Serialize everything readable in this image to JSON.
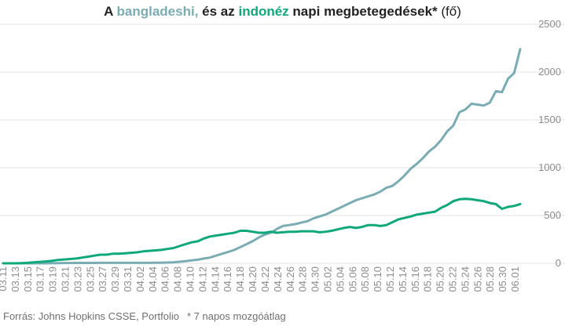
{
  "title": {
    "part1": "A ",
    "part2": "bangladeshi,",
    "part3": " és az ",
    "part4": "indonéz",
    "part5": " napi megbetegedések* ",
    "part6": "(fő)"
  },
  "footer": {
    "source": "Forrás: Johns Hopkins CSSE, Portfolio",
    "note": "* 7 napos mozgóátlag"
  },
  "colors": {
    "bangladesh": "#7aacb3",
    "indonesia": "#0fa878",
    "grid": "#e3e3e3",
    "tick": "#8c8c8c"
  },
  "chart_data": {
    "type": "line",
    "ylim": [
      0,
      2500
    ],
    "yticks": [
      0,
      500,
      1000,
      1500,
      2000,
      2500
    ],
    "xticks": [
      "03.11",
      "03.13",
      "03.15",
      "03.17",
      "03.19",
      "03.21",
      "03.23",
      "03.25",
      "03.27",
      "03.29",
      "03.31",
      "04.02",
      "04.04",
      "04.06",
      "04.08",
      "04.10",
      "04.12",
      "04.14",
      "04.16",
      "04.18",
      "04.20",
      "04.22",
      "04.24",
      "04.26",
      "04.28",
      "04.30",
      "05.02",
      "05.04",
      "05.06",
      "05.08",
      "05.10",
      "05.12",
      "05.14",
      "05.16",
      "05.18",
      "05.20",
      "05.22",
      "05.24",
      "05.26",
      "05.28",
      "05.30",
      "06.01"
    ],
    "series": [
      {
        "key": "bangladesh",
        "values": [
          0,
          0,
          0,
          0,
          0,
          0,
          0,
          0,
          1,
          2,
          3,
          3,
          4,
          4,
          4,
          4,
          5,
          5,
          5,
          5,
          5,
          5,
          5,
          5,
          5,
          6,
          6,
          8,
          11,
          16,
          22,
          30,
          38,
          50,
          60,
          80,
          100,
          120,
          140,
          170,
          200,
          230,
          270,
          300,
          320,
          360,
          390,
          400,
          410,
          425,
          440,
          470,
          490,
          510,
          540,
          570,
          600,
          630,
          660,
          680,
          700,
          720,
          750,
          790,
          810,
          860,
          920,
          990,
          1040,
          1100,
          1170,
          1220,
          1290,
          1380,
          1440,
          1580,
          1610,
          1670,
          1660,
          1650,
          1680,
          1800,
          1790,
          1930,
          1990,
          2240
        ]
      },
      {
        "key": "indonesia",
        "values": [
          0,
          0,
          0,
          2,
          5,
          10,
          15,
          20,
          25,
          35,
          40,
          45,
          50,
          60,
          70,
          80,
          90,
          90,
          100,
          100,
          105,
          110,
          115,
          125,
          130,
          135,
          140,
          150,
          160,
          180,
          200,
          220,
          230,
          260,
          280,
          290,
          300,
          310,
          320,
          340,
          340,
          330,
          320,
          320,
          330,
          320,
          325,
          330,
          330,
          335,
          335,
          335,
          325,
          330,
          340,
          355,
          370,
          380,
          370,
          380,
          400,
          400,
          390,
          400,
          430,
          460,
          475,
          490,
          510,
          520,
          530,
          540,
          580,
          610,
          650,
          670,
          675,
          670,
          660,
          650,
          630,
          620,
          570,
          590,
          600,
          620
        ]
      }
    ]
  }
}
